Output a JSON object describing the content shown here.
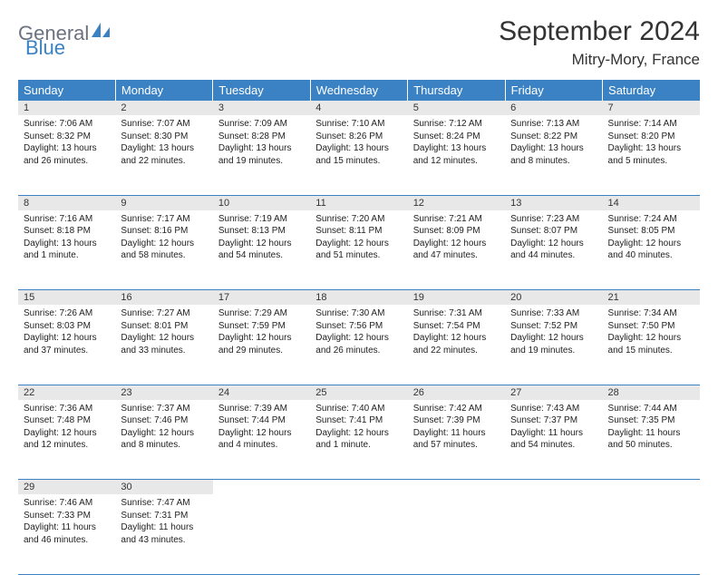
{
  "logo": {
    "part1": "General",
    "part2": "Blue"
  },
  "title": "September 2024",
  "location": "Mitry-Mory, France",
  "colors": {
    "header_bg": "#3b82c4",
    "header_fg": "#ffffff",
    "daynum_bg": "#e8e8e8",
    "rule": "#3b82c4",
    "text": "#222222",
    "logo_gray": "#6b7280",
    "logo_blue": "#3b82c4",
    "page_bg": "#ffffff"
  },
  "weekdays": [
    "Sunday",
    "Monday",
    "Tuesday",
    "Wednesday",
    "Thursday",
    "Friday",
    "Saturday"
  ],
  "weeks": [
    [
      {
        "n": "1",
        "sr": "Sunrise: 7:06 AM",
        "ss": "Sunset: 8:32 PM",
        "dl": "Daylight: 13 hours and 26 minutes."
      },
      {
        "n": "2",
        "sr": "Sunrise: 7:07 AM",
        "ss": "Sunset: 8:30 PM",
        "dl": "Daylight: 13 hours and 22 minutes."
      },
      {
        "n": "3",
        "sr": "Sunrise: 7:09 AM",
        "ss": "Sunset: 8:28 PM",
        "dl": "Daylight: 13 hours and 19 minutes."
      },
      {
        "n": "4",
        "sr": "Sunrise: 7:10 AM",
        "ss": "Sunset: 8:26 PM",
        "dl": "Daylight: 13 hours and 15 minutes."
      },
      {
        "n": "5",
        "sr": "Sunrise: 7:12 AM",
        "ss": "Sunset: 8:24 PM",
        "dl": "Daylight: 13 hours and 12 minutes."
      },
      {
        "n": "6",
        "sr": "Sunrise: 7:13 AM",
        "ss": "Sunset: 8:22 PM",
        "dl": "Daylight: 13 hours and 8 minutes."
      },
      {
        "n": "7",
        "sr": "Sunrise: 7:14 AM",
        "ss": "Sunset: 8:20 PM",
        "dl": "Daylight: 13 hours and 5 minutes."
      }
    ],
    [
      {
        "n": "8",
        "sr": "Sunrise: 7:16 AM",
        "ss": "Sunset: 8:18 PM",
        "dl": "Daylight: 13 hours and 1 minute."
      },
      {
        "n": "9",
        "sr": "Sunrise: 7:17 AM",
        "ss": "Sunset: 8:16 PM",
        "dl": "Daylight: 12 hours and 58 minutes."
      },
      {
        "n": "10",
        "sr": "Sunrise: 7:19 AM",
        "ss": "Sunset: 8:13 PM",
        "dl": "Daylight: 12 hours and 54 minutes."
      },
      {
        "n": "11",
        "sr": "Sunrise: 7:20 AM",
        "ss": "Sunset: 8:11 PM",
        "dl": "Daylight: 12 hours and 51 minutes."
      },
      {
        "n": "12",
        "sr": "Sunrise: 7:21 AM",
        "ss": "Sunset: 8:09 PM",
        "dl": "Daylight: 12 hours and 47 minutes."
      },
      {
        "n": "13",
        "sr": "Sunrise: 7:23 AM",
        "ss": "Sunset: 8:07 PM",
        "dl": "Daylight: 12 hours and 44 minutes."
      },
      {
        "n": "14",
        "sr": "Sunrise: 7:24 AM",
        "ss": "Sunset: 8:05 PM",
        "dl": "Daylight: 12 hours and 40 minutes."
      }
    ],
    [
      {
        "n": "15",
        "sr": "Sunrise: 7:26 AM",
        "ss": "Sunset: 8:03 PM",
        "dl": "Daylight: 12 hours and 37 minutes."
      },
      {
        "n": "16",
        "sr": "Sunrise: 7:27 AM",
        "ss": "Sunset: 8:01 PM",
        "dl": "Daylight: 12 hours and 33 minutes."
      },
      {
        "n": "17",
        "sr": "Sunrise: 7:29 AM",
        "ss": "Sunset: 7:59 PM",
        "dl": "Daylight: 12 hours and 29 minutes."
      },
      {
        "n": "18",
        "sr": "Sunrise: 7:30 AM",
        "ss": "Sunset: 7:56 PM",
        "dl": "Daylight: 12 hours and 26 minutes."
      },
      {
        "n": "19",
        "sr": "Sunrise: 7:31 AM",
        "ss": "Sunset: 7:54 PM",
        "dl": "Daylight: 12 hours and 22 minutes."
      },
      {
        "n": "20",
        "sr": "Sunrise: 7:33 AM",
        "ss": "Sunset: 7:52 PM",
        "dl": "Daylight: 12 hours and 19 minutes."
      },
      {
        "n": "21",
        "sr": "Sunrise: 7:34 AM",
        "ss": "Sunset: 7:50 PM",
        "dl": "Daylight: 12 hours and 15 minutes."
      }
    ],
    [
      {
        "n": "22",
        "sr": "Sunrise: 7:36 AM",
        "ss": "Sunset: 7:48 PM",
        "dl": "Daylight: 12 hours and 12 minutes."
      },
      {
        "n": "23",
        "sr": "Sunrise: 7:37 AM",
        "ss": "Sunset: 7:46 PM",
        "dl": "Daylight: 12 hours and 8 minutes."
      },
      {
        "n": "24",
        "sr": "Sunrise: 7:39 AM",
        "ss": "Sunset: 7:44 PM",
        "dl": "Daylight: 12 hours and 4 minutes."
      },
      {
        "n": "25",
        "sr": "Sunrise: 7:40 AM",
        "ss": "Sunset: 7:41 PM",
        "dl": "Daylight: 12 hours and 1 minute."
      },
      {
        "n": "26",
        "sr": "Sunrise: 7:42 AM",
        "ss": "Sunset: 7:39 PM",
        "dl": "Daylight: 11 hours and 57 minutes."
      },
      {
        "n": "27",
        "sr": "Sunrise: 7:43 AM",
        "ss": "Sunset: 7:37 PM",
        "dl": "Daylight: 11 hours and 54 minutes."
      },
      {
        "n": "28",
        "sr": "Sunrise: 7:44 AM",
        "ss": "Sunset: 7:35 PM",
        "dl": "Daylight: 11 hours and 50 minutes."
      }
    ],
    [
      {
        "n": "29",
        "sr": "Sunrise: 7:46 AM",
        "ss": "Sunset: 7:33 PM",
        "dl": "Daylight: 11 hours and 46 minutes."
      },
      {
        "n": "30",
        "sr": "Sunrise: 7:47 AM",
        "ss": "Sunset: 7:31 PM",
        "dl": "Daylight: 11 hours and 43 minutes."
      },
      null,
      null,
      null,
      null,
      null
    ]
  ]
}
